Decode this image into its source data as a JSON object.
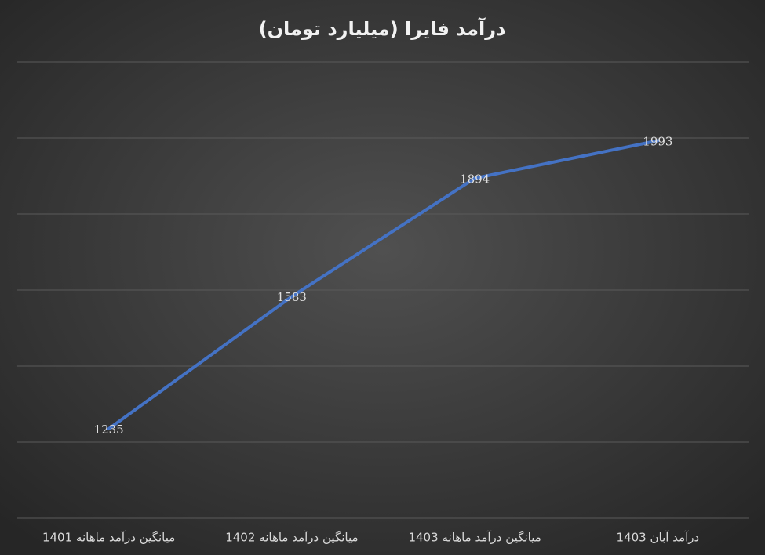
{
  "chart_data": {
    "type": "line",
    "title": "درآمد فایرا (میلیارد تومان)",
    "categories": [
      "میانگین درآمد ماهانه 1401",
      "میانگین درآمد ماهانه 1402",
      "میانگین درآمد ماهانه 1403",
      "درآمد آبان 1403"
    ],
    "series": [
      {
        "color": "#4472c4",
        "values": [
          1235,
          1583,
          1894,
          1993
        ]
      }
    ],
    "ylim": [
      1000,
      2200
    ],
    "yticks": [
      1000,
      1200,
      1400,
      1600,
      1800,
      2000,
      2200
    ],
    "grid": true
  }
}
